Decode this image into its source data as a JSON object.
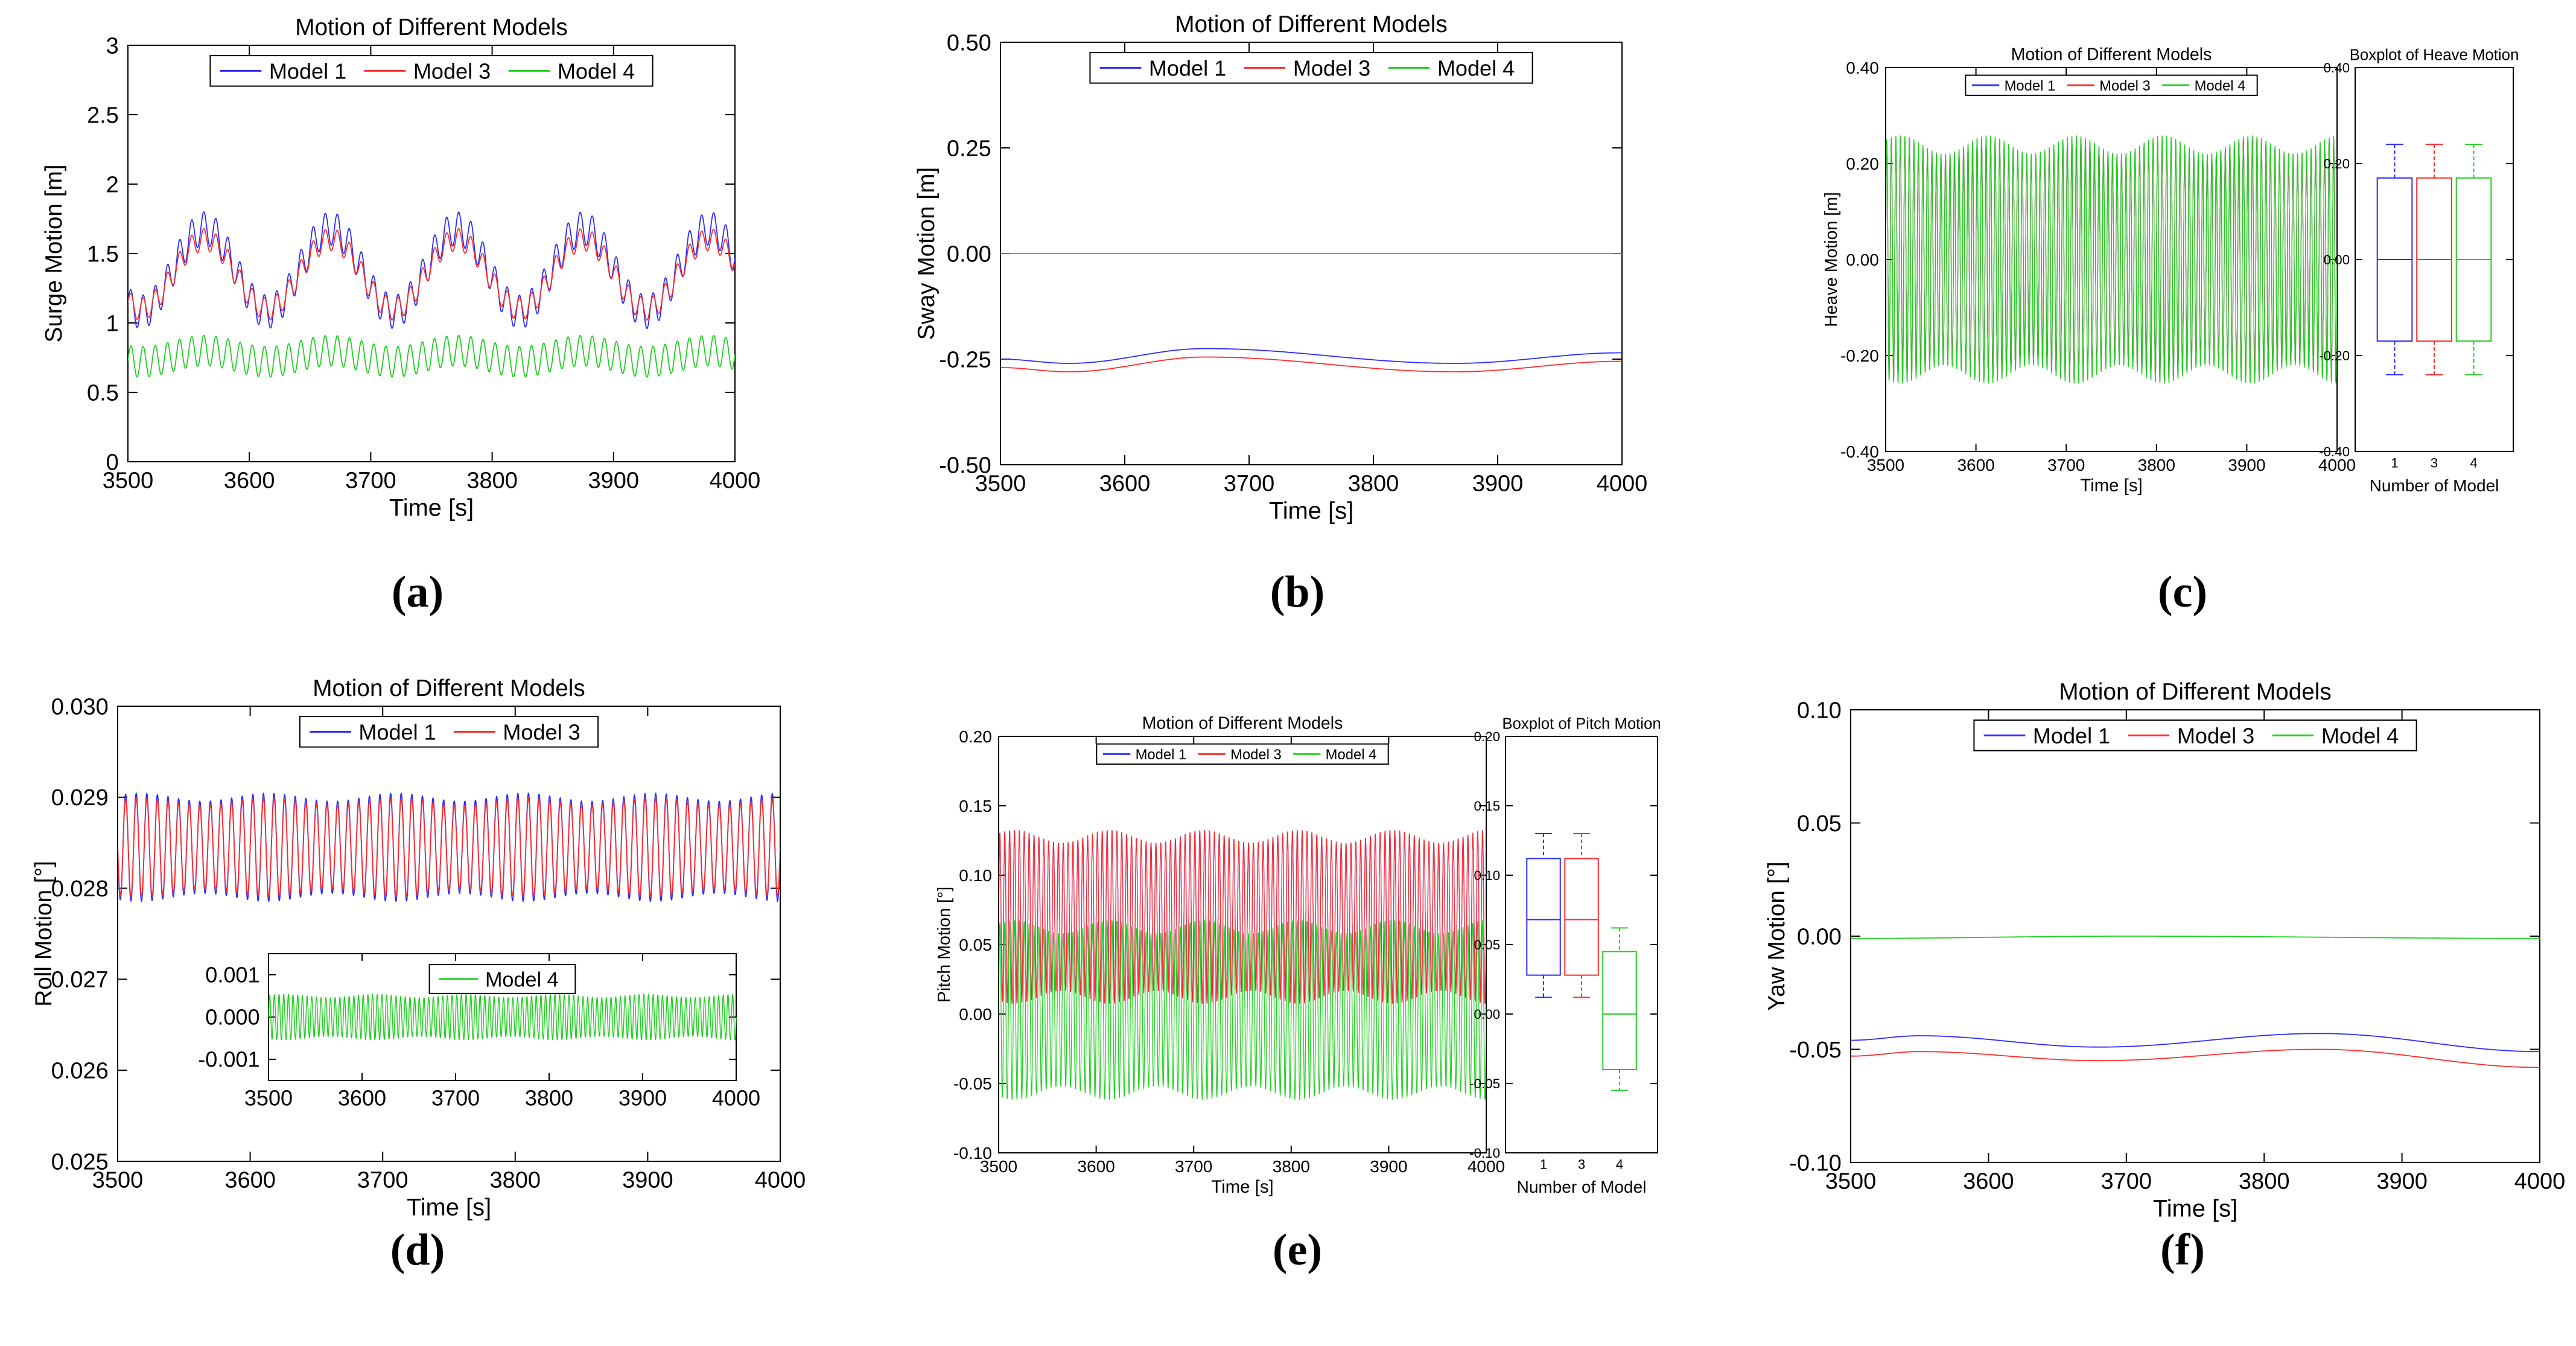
{
  "colors": {
    "model_1": "#2b2bff",
    "model_3": "#ff2b2b",
    "model_4": "#1fd01f",
    "axis": "#000000",
    "background": "#ffffff"
  },
  "chart_data": [
    {
      "panel": "(a)",
      "type": "line",
      "title": "Motion of Different Models",
      "xlabel": "Time [s]",
      "ylabel": "Surge Motion [m]",
      "xlim": [
        3500,
        4000
      ],
      "ylim": [
        0,
        3
      ],
      "xticks": [
        "3500",
        "3600",
        "3700",
        "3800",
        "3900",
        "4000"
      ],
      "yticks": [
        "0",
        "0.5",
        "1",
        "1.5",
        "2",
        "2.5",
        "3"
      ],
      "legend": [
        "Model 1",
        "Model 3",
        "Model 4"
      ],
      "legend_position": "top-center",
      "series": [
        {
          "name": "Model 1",
          "mean": 1.38,
          "slow_amplitude": 0.3,
          "slow_period_s": 104,
          "slow_phase_s": 3537,
          "fast_amplitude": 0.12,
          "fast_period_s": 10,
          "range": [
            0.88,
            1.9
          ]
        },
        {
          "name": "Model 3",
          "mean": 1.35,
          "slow_amplitude": 0.25,
          "slow_period_s": 104,
          "slow_phase_s": 3537,
          "fast_amplitude": 0.08,
          "fast_period_s": 10,
          "range": [
            0.98,
            1.75
          ]
        },
        {
          "name": "Model 4",
          "mean": 0.76,
          "slow_amplitude": 0.04,
          "slow_period_s": 104,
          "slow_phase_s": 3537,
          "fast_amplitude": 0.11,
          "fast_period_s": 10,
          "range": [
            0.58,
            0.92
          ]
        }
      ]
    },
    {
      "panel": "(b)",
      "type": "line",
      "title": "Motion of Different Models",
      "xlabel": "Time [s]",
      "ylabel": "Sway Motion [m]",
      "xlim": [
        3500,
        4000
      ],
      "ylim": [
        -0.5,
        0.5
      ],
      "xticks": [
        "3500",
        "3600",
        "3700",
        "3800",
        "3900",
        "4000"
      ],
      "yticks": [
        "-0.50",
        "-0.25",
        "0.00",
        "0.25",
        "0.50"
      ],
      "legend": [
        "Model 1",
        "Model 3",
        "Model 4"
      ],
      "legend_position": "top-center",
      "series": [
        {
          "name": "Model 1",
          "x": [
            3500,
            3555,
            3665,
            3865,
            4000
          ],
          "y": [
            -0.25,
            -0.26,
            -0.225,
            -0.26,
            -0.235
          ]
        },
        {
          "name": "Model 3",
          "x": [
            3500,
            3555,
            3665,
            3865,
            4000
          ],
          "y": [
            -0.27,
            -0.28,
            -0.245,
            -0.28,
            -0.255
          ]
        },
        {
          "name": "Model 4",
          "x": [
            3500,
            4000
          ],
          "y": [
            0.0,
            0.0
          ]
        }
      ]
    },
    {
      "panel": "(c)",
      "type": "line",
      "title": "Motion of Different Models",
      "xlabel": "Time [s]",
      "ylabel": "Heave Motion [m]",
      "xlim": [
        3500,
        4000
      ],
      "ylim": [
        -0.4,
        0.4
      ],
      "xticks": [
        "3500",
        "3600",
        "3700",
        "3800",
        "3900",
        "4000"
      ],
      "yticks": [
        "-0.40",
        "-0.20",
        "0.00",
        "0.20",
        "0.40"
      ],
      "legend": [
        "Model 1",
        "Model 3",
        "Model 4"
      ],
      "legend_position": "top-center",
      "series": [
        {
          "name": "Model 1",
          "mean": 0.0,
          "amplitude": 0.235,
          "period_s": 5
        },
        {
          "name": "Model 3",
          "mean": 0.0,
          "amplitude": 0.235,
          "period_s": 5
        },
        {
          "name": "Model 4",
          "mean": 0.0,
          "amplitude": 0.24,
          "period_s": 5
        }
      ],
      "boxplot": {
        "title": "Boxplot of Heave Motion",
        "xlabel": "Number of Model",
        "ylim": [
          -0.4,
          0.4
        ],
        "yticks": [
          "-0.40",
          "-0.20",
          "0.00",
          "0.20",
          "0.40"
        ],
        "categories": [
          "1",
          "3",
          "4"
        ],
        "boxes": [
          {
            "name": "1",
            "min": -0.24,
            "q1": -0.17,
            "median": 0.0,
            "q3": 0.17,
            "max": 0.24
          },
          {
            "name": "3",
            "min": -0.24,
            "q1": -0.17,
            "median": 0.0,
            "q3": 0.17,
            "max": 0.24
          },
          {
            "name": "4",
            "min": -0.24,
            "q1": -0.17,
            "median": 0.0,
            "q3": 0.17,
            "max": 0.24
          }
        ]
      }
    },
    {
      "panel": "(d)",
      "type": "line",
      "title": "Motion of Different Models",
      "xlabel": "Time [s]",
      "ylabel": "Roll Motion [°]",
      "xlim": [
        3500,
        4000
      ],
      "ylim": [
        0.025,
        0.03
      ],
      "xticks": [
        "3500",
        "3600",
        "3700",
        "3800",
        "3900",
        "4000"
      ],
      "yticks": [
        "0.025",
        "0.026",
        "0.027",
        "0.028",
        "0.029",
        "0.030"
      ],
      "legend": [
        "Model 1",
        "Model 3"
      ],
      "legend_position": "top-center",
      "series": [
        {
          "name": "Model 1",
          "mean": 0.02845,
          "amplitude": 0.00055,
          "period_s": 8
        },
        {
          "name": "Model 3",
          "mean": 0.02845,
          "amplitude": 0.0005,
          "period_s": 8
        }
      ],
      "inset": {
        "xlim": [
          3500,
          4000
        ],
        "ylim": [
          -0.0015,
          0.0015
        ],
        "xticks": [
          "3500",
          "3600",
          "3700",
          "3800",
          "3900",
          "4000"
        ],
        "yticks": [
          "-0.001",
          "0.000",
          "0.001"
        ],
        "legend": [
          "Model 4"
        ],
        "series": [
          {
            "name": "Model 4",
            "mean": 0.0,
            "amplitude": 0.0005,
            "period_s": 5
          }
        ]
      }
    },
    {
      "panel": "(e)",
      "type": "line",
      "title": "Motion of Different Models",
      "xlabel": "Time [s]",
      "ylabel": "Pitch Motion [°]",
      "xlim": [
        3500,
        4000
      ],
      "ylim": [
        -0.1,
        0.2
      ],
      "xticks": [
        "3500",
        "3600",
        "3700",
        "3800",
        "3900",
        "4000"
      ],
      "yticks": [
        "-0.10",
        "-0.05",
        "0.00",
        "0.05",
        "0.10",
        "0.15",
        "0.20"
      ],
      "legend": [
        "Model 1",
        "Model 3",
        "Model 4"
      ],
      "legend_position": "top-center",
      "series": [
        {
          "name": "Model 1",
          "mean": 0.07,
          "amplitude": 0.058,
          "period_s": 5
        },
        {
          "name": "Model 3",
          "mean": 0.07,
          "amplitude": 0.058,
          "period_s": 5
        },
        {
          "name": "Model 4",
          "mean": 0.003,
          "amplitude": 0.06,
          "period_s": 5
        }
      ],
      "boxplot": {
        "title": "Boxplot of Pitch Motion",
        "xlabel": "Number of Model",
        "ylim": [
          -0.1,
          0.2
        ],
        "yticks": [
          "-0.10",
          "-0.05",
          "0.00",
          "0.05",
          "0.10",
          "0.15",
          "0.20"
        ],
        "categories": [
          "1",
          "3",
          "4"
        ],
        "boxes": [
          {
            "name": "1",
            "min": 0.012,
            "q1": 0.028,
            "median": 0.068,
            "q3": 0.112,
            "max": 0.13
          },
          {
            "name": "3",
            "min": 0.012,
            "q1": 0.028,
            "median": 0.068,
            "q3": 0.112,
            "max": 0.13
          },
          {
            "name": "4",
            "min": -0.055,
            "q1": -0.04,
            "median": 0.0,
            "q3": 0.045,
            "max": 0.062
          }
        ]
      }
    },
    {
      "panel": "(f)",
      "type": "line",
      "title": "Motion of Different Models",
      "xlabel": "Time [s]",
      "ylabel": "Yaw Motion [°]",
      "xlim": [
        3500,
        4000
      ],
      "ylim": [
        -0.1,
        0.1
      ],
      "xticks": [
        "3500",
        "3600",
        "3700",
        "3800",
        "3900",
        "4000"
      ],
      "yticks": [
        "-0.10",
        "-0.05",
        "0.00",
        "0.05",
        "0.10"
      ],
      "legend": [
        "Model 1",
        "Model 3",
        "Model 4"
      ],
      "legend_position": "top-center",
      "series": [
        {
          "name": "Model 1",
          "x": [
            3500,
            3550,
            3680,
            3840,
            4000
          ],
          "y": [
            -0.046,
            -0.044,
            -0.049,
            -0.043,
            -0.051
          ]
        },
        {
          "name": "Model 3",
          "x": [
            3500,
            3550,
            3680,
            3840,
            4000
          ],
          "y": [
            -0.053,
            -0.051,
            -0.055,
            -0.05,
            -0.058
          ]
        },
        {
          "name": "Model 4",
          "x": [
            3500,
            3700,
            4000
          ],
          "y": [
            -0.001,
            0.0,
            -0.001
          ]
        }
      ]
    }
  ]
}
